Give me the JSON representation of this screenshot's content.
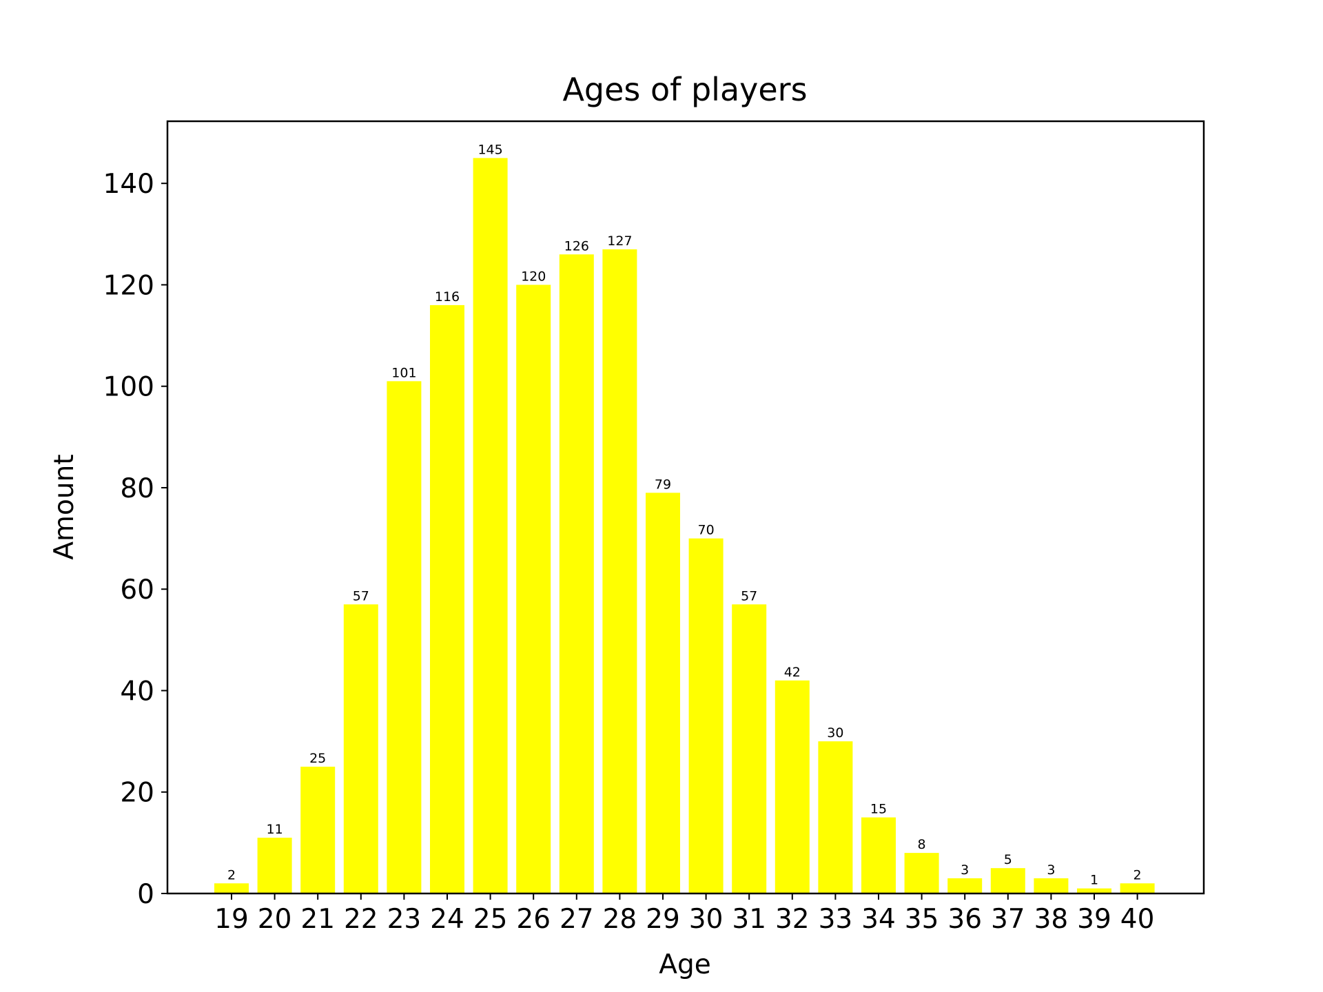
{
  "chart_data": {
    "type": "bar",
    "title": "Ages of players",
    "xlabel": "Age",
    "ylabel": "Amount",
    "categories": [
      "19",
      "20",
      "21",
      "22",
      "23",
      "24",
      "25",
      "26",
      "27",
      "28",
      "29",
      "30",
      "31",
      "32",
      "33",
      "34",
      "35",
      "36",
      "37",
      "38",
      "39",
      "40"
    ],
    "values": [
      2,
      11,
      25,
      57,
      101,
      116,
      145,
      120,
      126,
      127,
      79,
      70,
      57,
      42,
      30,
      15,
      8,
      3,
      5,
      3,
      1,
      2
    ],
    "value_labels": [
      "2",
      "11",
      "25",
      "57",
      "101",
      "116",
      "145",
      "120",
      "126",
      "127",
      "79",
      "70",
      "57",
      "42",
      "30",
      "15",
      "8",
      "3",
      "5",
      "3",
      "1",
      "2"
    ],
    "ylim": [
      0,
      152.25
    ],
    "yticks": [
      0,
      20,
      40,
      60,
      80,
      100,
      120,
      140
    ],
    "ytick_labels": [
      "0",
      "20",
      "40",
      "60",
      "80",
      "100",
      "120",
      "140"
    ],
    "grid": false,
    "legend": "none",
    "bar_color": "#ffff00",
    "axis_color": "#000000"
  }
}
